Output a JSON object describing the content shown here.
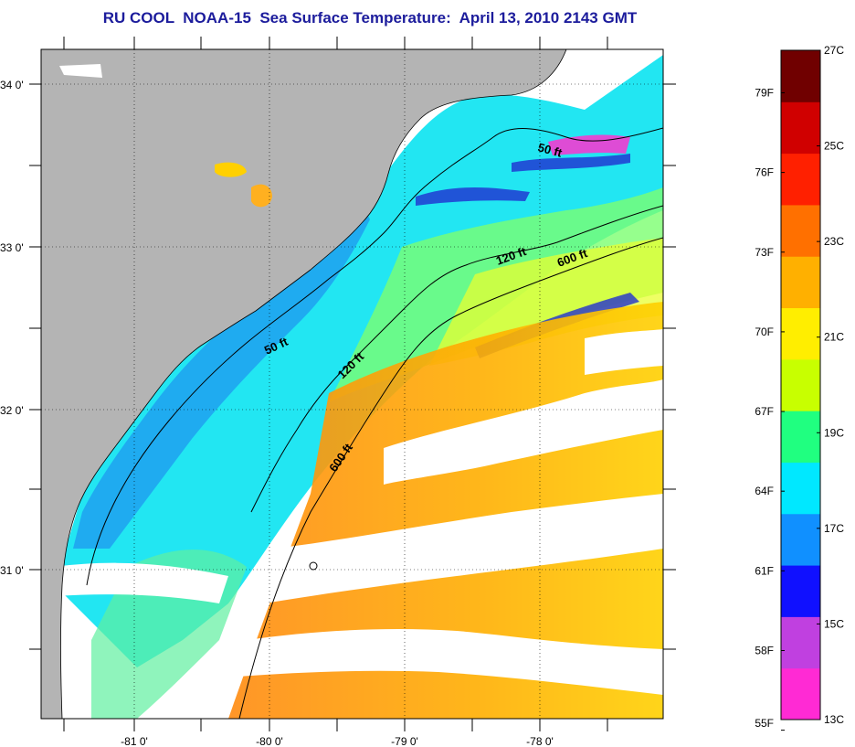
{
  "title": "RU COOL  NOAA-15  Sea Surface Temperature:  April 13, 2010 2143 GMT",
  "map": {
    "lon_ticks": [
      "-81 0'",
      "-80 0'",
      "-79 0'",
      "-78 0'"
    ],
    "lat_ticks": [
      "34 0'",
      "33 0'",
      "32 0'",
      "31 0'"
    ],
    "contour_labels": [
      "50 ft",
      "120 ft",
      "600 ft",
      "50 ft",
      "120 ft",
      "600 ft"
    ],
    "land_color": "#b4b4b4",
    "cloud_color": "#ffffff"
  },
  "colorbar": {
    "fahrenheit_labels": [
      "79F",
      "76F",
      "73F",
      "70F",
      "67F",
      "64F",
      "61F",
      "58F",
      "55F"
    ],
    "celsius_labels": [
      "27C",
      "25C",
      "23C",
      "21C",
      "19C",
      "17C",
      "15C",
      "13C"
    ],
    "min_c": 13,
    "max_c": 27,
    "colors": [
      "#ff2ad4",
      "#c040e0",
      "#1010ff",
      "#1090ff",
      "#00e8ff",
      "#20ff80",
      "#c8ff00",
      "#ffee00",
      "#ffb000",
      "#ff7000",
      "#ff2000",
      "#d00000",
      "#700000"
    ]
  }
}
